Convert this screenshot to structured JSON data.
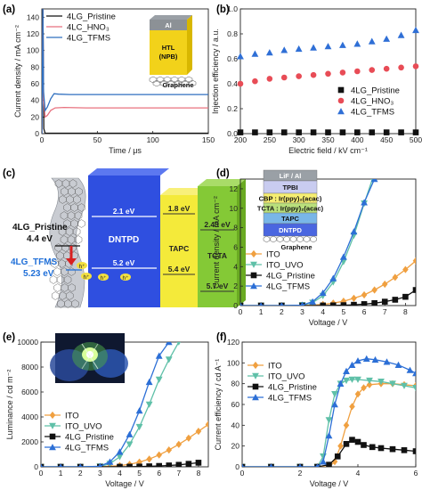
{
  "chart_data": [
    {
      "id": "a",
      "panel_label": "(a)",
      "type": "line",
      "xlabel": "Time / μs",
      "ylabel": "Current density / mA cm⁻²",
      "xlim": [
        0,
        150
      ],
      "ylim": [
        0,
        150
      ],
      "xticks": [
        0,
        50,
        100,
        150
      ],
      "yticks": [
        0,
        20,
        40,
        60,
        80,
        100,
        120,
        140
      ],
      "legend_position": "top-left",
      "inset_labels": {
        "top": "Al",
        "middle": "HTL\n(NPB)",
        "bottom": "Graphene"
      },
      "series": [
        {
          "name": "4LG_Pristine",
          "color": "#111111",
          "x": [
            0,
            1,
            1.8,
            3,
            150
          ],
          "y": [
            0,
            150,
            6,
            0.5,
            0.5
          ]
        },
        {
          "name": "4LC_HNO₃",
          "color": "#e8727f",
          "x": [
            0,
            1,
            1.5,
            3,
            5,
            8,
            12,
            20,
            40,
            80,
            150
          ],
          "y": [
            0,
            150,
            40,
            20,
            22,
            28,
            31,
            31.5,
            31,
            31,
            31
          ]
        },
        {
          "name": "4LG_TFMS",
          "color": "#2f6fbf",
          "x": [
            0,
            1,
            1.5,
            3,
            5,
            8,
            11,
            15,
            25,
            60,
            100,
            150
          ],
          "y": [
            0,
            150,
            50,
            28,
            32,
            42,
            48,
            47.5,
            47,
            47,
            47,
            47
          ]
        }
      ]
    },
    {
      "id": "b",
      "panel_label": "(b)",
      "type": "scatter",
      "xlabel": "Electric field / kV cm⁻¹",
      "ylabel": "Injection efficiency / a.u.",
      "xlim": [
        200,
        500
      ],
      "ylim": [
        0,
        1.0
      ],
      "xticks": [
        200,
        250,
        300,
        350,
        400,
        450,
        500
      ],
      "yticks": [
        0.0,
        0.2,
        0.4,
        0.6,
        0.8,
        1.0
      ],
      "legend_position": "bottom-right",
      "series": [
        {
          "name": "4LG_Pristine",
          "marker": "square",
          "color": "#111111",
          "x": [
            200,
            225,
            250,
            275,
            300,
            325,
            350,
            375,
            400,
            425,
            450,
            475,
            500
          ],
          "y": [
            0.01,
            0.01,
            0.01,
            0.01,
            0.01,
            0.01,
            0.01,
            0.01,
            0.01,
            0.01,
            0.01,
            0.01,
            0.01
          ]
        },
        {
          "name": "4LG_HNO₃",
          "marker": "circle",
          "color": "#e84c56",
          "x": [
            200,
            225,
            250,
            275,
            300,
            325,
            350,
            375,
            400,
            425,
            450,
            475,
            500
          ],
          "y": [
            0.4,
            0.42,
            0.44,
            0.45,
            0.46,
            0.47,
            0.48,
            0.49,
            0.5,
            0.51,
            0.52,
            0.53,
            0.54
          ]
        },
        {
          "name": "4LG_TFMS",
          "marker": "triangle",
          "color": "#2f6fd6",
          "x": [
            200,
            225,
            250,
            275,
            300,
            325,
            350,
            375,
            400,
            425,
            450,
            475,
            500
          ],
          "y": [
            0.62,
            0.64,
            0.65,
            0.67,
            0.68,
            0.69,
            0.7,
            0.71,
            0.72,
            0.74,
            0.76,
            0.79,
            0.83
          ]
        }
      ]
    },
    {
      "id": "d",
      "panel_label": "(d)",
      "type": "line",
      "xlabel": "Voltage / V",
      "ylabel": "Current density / mA cm⁻²",
      "xlim": [
        0,
        8.5
      ],
      "ylim": [
        0,
        13
      ],
      "xticks": [
        0,
        1,
        2,
        3,
        4,
        5,
        6,
        7,
        8
      ],
      "yticks": [
        0,
        2,
        4,
        6,
        8,
        10,
        12
      ],
      "legend_position": "bottom-left",
      "inset_layers": [
        "LiF / Al",
        "TPBI",
        "CBP : Ir(ppy)₂(acac)",
        "TCTA : Ir(ppy)₂(acac)",
        "TAPC",
        "DNTPD",
        "Graphene"
      ],
      "series": [
        {
          "name": "ITO",
          "marker": "diamond",
          "color": "#f0a040",
          "x": [
            0,
            1,
            2,
            3,
            3.5,
            4,
            4.5,
            5,
            5.5,
            6,
            6.5,
            7,
            7.5,
            8,
            8.5
          ],
          "y": [
            0,
            0,
            0,
            0.02,
            0.05,
            0.12,
            0.25,
            0.45,
            0.75,
            1.1,
            1.6,
            2.2,
            2.9,
            3.7,
            4.6
          ]
        },
        {
          "name": "ITO_UVO",
          "marker": "triangle-down",
          "color": "#5fc0a8",
          "x": [
            0,
            1,
            2,
            3,
            3.5,
            4,
            4.5,
            5,
            5.5,
            6,
            6.4
          ],
          "y": [
            0,
            0,
            0,
            0.05,
            0.3,
            1.0,
            2.4,
            4.5,
            7.2,
            10.5,
            13
          ]
        },
        {
          "name": "4LG_Pristine",
          "marker": "square",
          "color": "#111111",
          "x": [
            0,
            1,
            2,
            3,
            4,
            4.5,
            5,
            5.5,
            6,
            6.5,
            7,
            7.5,
            8,
            8.5
          ],
          "y": [
            0,
            0,
            0,
            0,
            0.01,
            0.02,
            0.04,
            0.08,
            0.15,
            0.25,
            0.4,
            0.6,
            0.9,
            1.6
          ]
        },
        {
          "name": "4LG_TFMS",
          "marker": "triangle",
          "color": "#2c6fd6",
          "x": [
            0,
            1,
            2,
            3,
            3.5,
            4,
            4.5,
            5,
            5.5,
            6,
            6.5
          ],
          "y": [
            0,
            0,
            0,
            0.05,
            0.4,
            1.3,
            2.8,
            5.0,
            7.6,
            10.6,
            13
          ]
        }
      ]
    },
    {
      "id": "e",
      "panel_label": "(e)",
      "type": "line",
      "xlabel": "Voltage / V",
      "ylabel": "Luminance / cd m⁻²",
      "xlim": [
        0,
        8.5
      ],
      "ylim": [
        0,
        10000
      ],
      "xticks": [
        0,
        1,
        2,
        3,
        4,
        5,
        6,
        7,
        8
      ],
      "yticks": [
        0,
        2000,
        4000,
        6000,
        8000,
        10000
      ],
      "legend_position": "bottom-left",
      "series": [
        {
          "name": "ITO",
          "marker": "diamond",
          "color": "#f0a040",
          "x": [
            0,
            1,
            2,
            3,
            3.5,
            4,
            4.5,
            5,
            5.5,
            6,
            6.5,
            7,
            7.5,
            8,
            8.5
          ],
          "y": [
            0,
            0,
            0,
            10,
            40,
            100,
            200,
            380,
            620,
            950,
            1350,
            1800,
            2300,
            2850,
            3400
          ]
        },
        {
          "name": "ITO_UVO",
          "marker": "triangle-down",
          "color": "#5fc0a8",
          "x": [
            0,
            1,
            2,
            3,
            3.5,
            4,
            4.5,
            5,
            5.5,
            6,
            6.5,
            7
          ],
          "y": [
            0,
            0,
            0,
            30,
            250,
            800,
            1800,
            3200,
            5000,
            7000,
            8600,
            10000
          ]
        },
        {
          "name": "4LG_Pristine",
          "marker": "square",
          "color": "#111111",
          "x": [
            0,
            1,
            2,
            3,
            4,
            4.5,
            5,
            5.5,
            6,
            6.5,
            7,
            7.5,
            8
          ],
          "y": [
            0,
            0,
            0,
            0,
            5,
            10,
            20,
            40,
            70,
            110,
            160,
            240,
            330
          ]
        },
        {
          "name": "4LG_TFMS",
          "marker": "triangle",
          "color": "#2c6fd6",
          "x": [
            0,
            1,
            2,
            3,
            3.5,
            4,
            4.5,
            5,
            5.5,
            6,
            6.5
          ],
          "y": [
            0,
            0,
            0,
            40,
            400,
            1200,
            2600,
            4500,
            6800,
            8900,
            10000
          ]
        }
      ]
    },
    {
      "id": "f",
      "panel_label": "(f)",
      "type": "line",
      "xlabel": "Voltage / V",
      "ylabel": "Current efficiency / cd A⁻¹",
      "xlim": [
        0,
        6
      ],
      "ylim": [
        0,
        120
      ],
      "xticks": [
        0,
        2,
        4,
        6
      ],
      "yticks": [
        0,
        20,
        40,
        60,
        80,
        100,
        120
      ],
      "legend_position": "top-left",
      "series": [
        {
          "name": "ITO",
          "marker": "diamond",
          "color": "#f0a040",
          "x": [
            0,
            1,
            2,
            2.6,
            3.0,
            3.2,
            3.4,
            3.6,
            3.8,
            4.0,
            4.2,
            4.4,
            4.8,
            5.2,
            5.6,
            6.0
          ],
          "y": [
            0,
            0,
            0,
            0,
            0,
            5,
            20,
            40,
            58,
            70,
            76,
            79,
            80,
            80,
            79,
            78
          ]
        },
        {
          "name": "ITO_UVO",
          "marker": "triangle-down",
          "color": "#5fc0a8",
          "x": [
            0,
            1,
            2,
            2.6,
            2.8,
            3.0,
            3.2,
            3.4,
            3.6,
            3.8,
            4.0,
            4.4,
            4.8,
            5.2,
            5.6,
            6.0
          ],
          "y": [
            0,
            0,
            0,
            0,
            10,
            45,
            70,
            80,
            83,
            84,
            84,
            83,
            82,
            80,
            78,
            76
          ]
        },
        {
          "name": "4LG_Pristine",
          "marker": "square",
          "color": "#111111",
          "x": [
            0,
            1,
            2,
            2.6,
            3.0,
            3.3,
            3.6,
            3.8,
            4.0,
            4.2,
            4.5,
            4.8,
            5.2,
            5.6,
            6.0
          ],
          "y": [
            0,
            0,
            0,
            0,
            2,
            10,
            22,
            26,
            24,
            21,
            19,
            18,
            17,
            16,
            15
          ]
        },
        {
          "name": "4LG_TFMS",
          "marker": "triangle",
          "color": "#2c6fd6",
          "x": [
            0,
            1,
            2,
            2.6,
            2.8,
            3.0,
            3.2,
            3.4,
            3.6,
            3.8,
            4.0,
            4.3,
            4.6,
            5.0,
            5.4,
            5.8,
            6.0
          ],
          "y": [
            0,
            0,
            0,
            0,
            5,
            30,
            60,
            80,
            92,
            98,
            102,
            104,
            103,
            101,
            98,
            93,
            90
          ]
        }
      ]
    }
  ],
  "panel_c": {
    "panel_label": "(c)",
    "work_functions": [
      {
        "name": "4LG_Pristine",
        "value": "4.4 eV",
        "color": "#111111"
      },
      {
        "name": "4LG_TFMS",
        "value": "5.23 eV",
        "color": "#1f6fd8"
      }
    ],
    "layers": [
      {
        "name": "DNTPD",
        "lumo": "2.1 eV",
        "homo": "5.2 eV",
        "color": "#2f4fe0"
      },
      {
        "name": "TAPC",
        "lumo": "1.8 eV",
        "homo": "5.4 eV",
        "color": "#f4ea3a"
      },
      {
        "name": "TCTA",
        "lumo": "2.43 eV",
        "homo": "5.7 eV",
        "color": "#84c936"
      }
    ],
    "carrier_symbol": "h⁺"
  }
}
